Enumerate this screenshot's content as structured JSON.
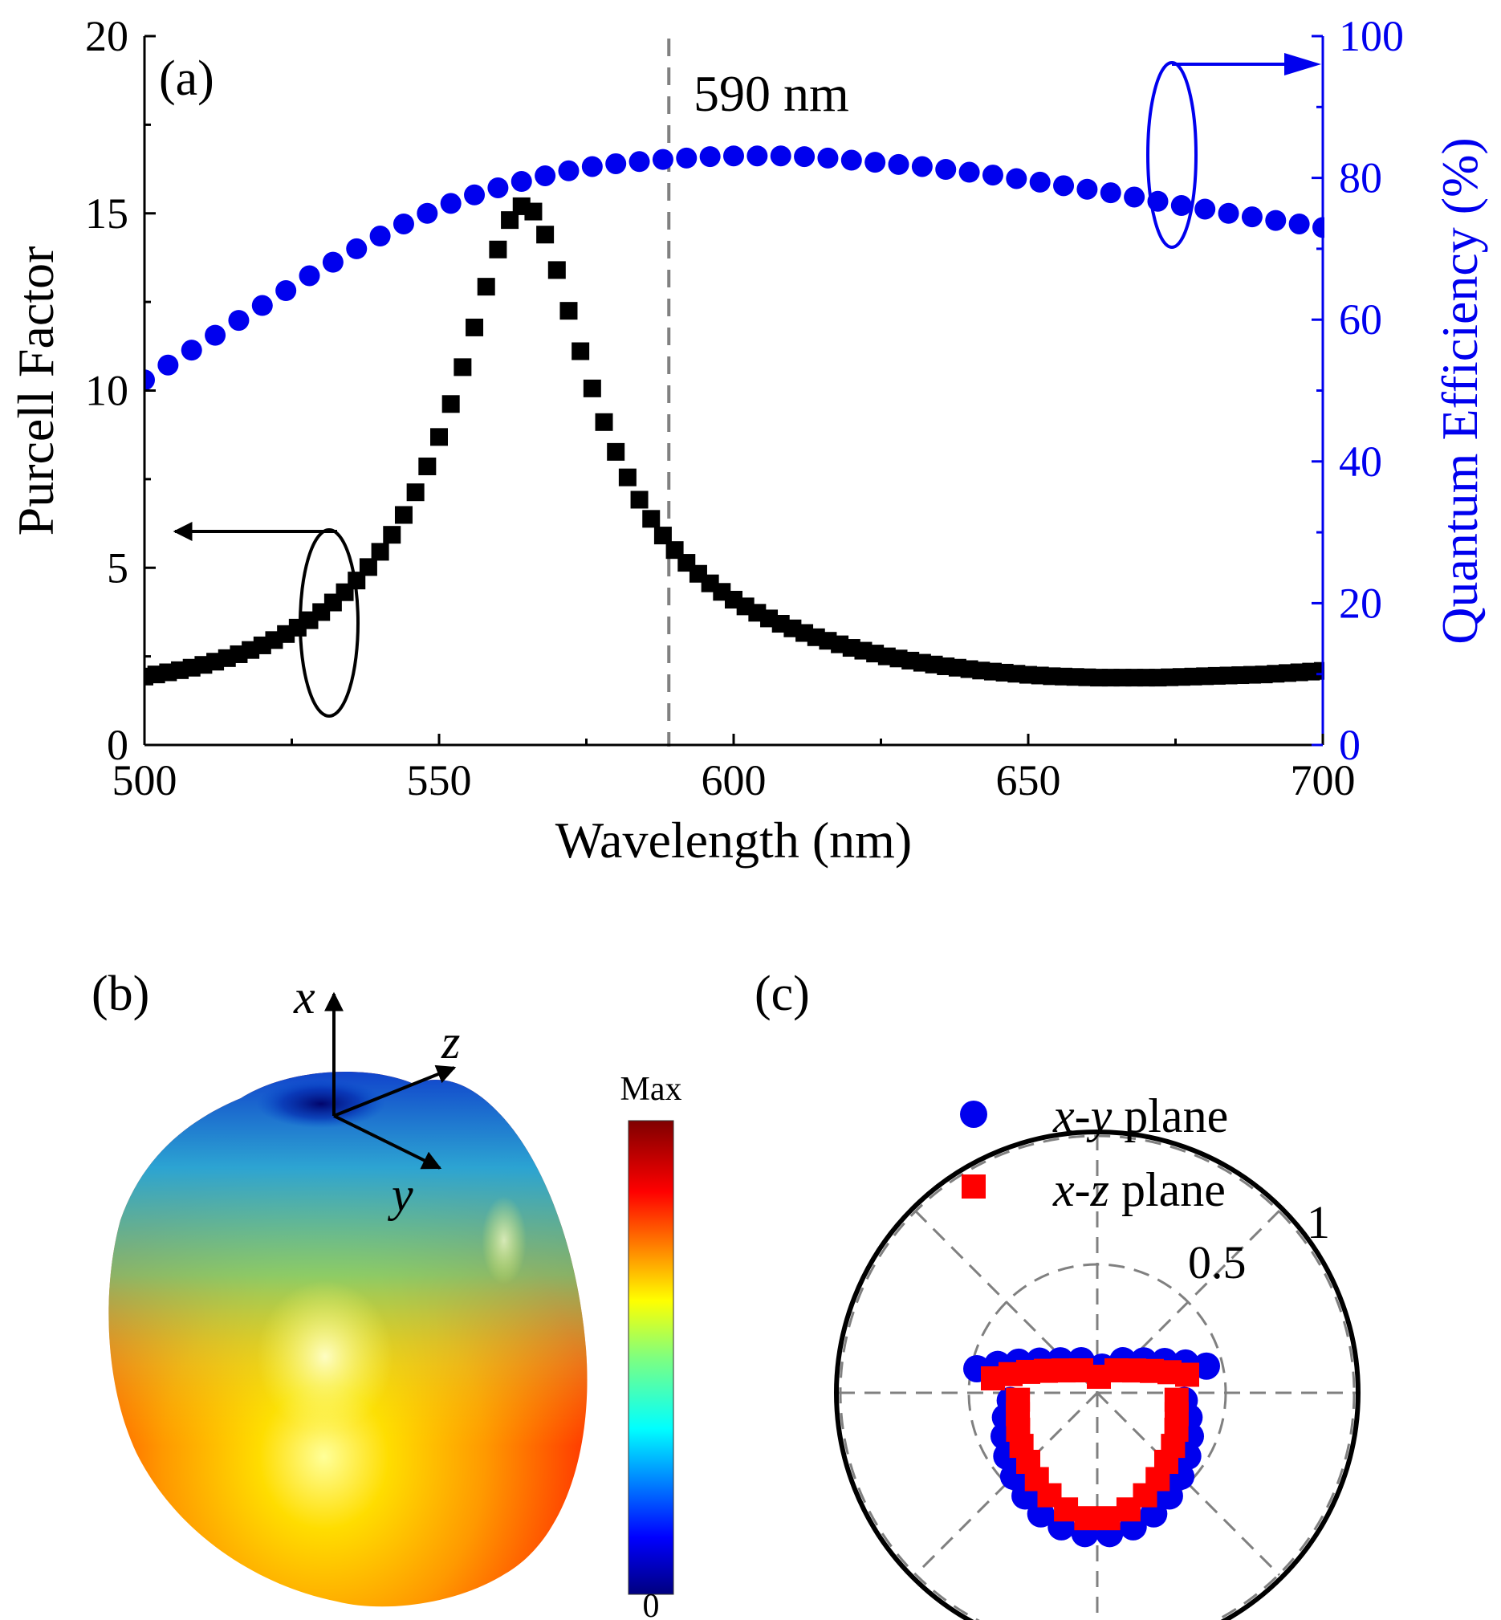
{
  "colors": {
    "purcell": "#000000",
    "qe": "#0000ee",
    "xy": "#0000ee",
    "xz": "#ff0000",
    "guide": "#808080"
  },
  "chart_data": [
    {
      "id": "a",
      "type": "scatter",
      "panel_label": "(a)",
      "xlabel": "Wavelength (nm)",
      "ylabel": "Purcell Factor",
      "y2label": "Quantum Efficiency (%)",
      "xlim": [
        500,
        700
      ],
      "ylim": [
        0,
        20
      ],
      "y2lim": [
        0,
        100
      ],
      "xticks": [
        "500",
        "550",
        "600",
        "650",
        "700"
      ],
      "yticks": [
        "0",
        "5",
        "10",
        "15",
        "20"
      ],
      "y2ticks": [
        "0",
        "20",
        "40",
        "60",
        "80",
        "100"
      ],
      "annotation": {
        "text": "590 nm",
        "x": 589
      },
      "series": [
        {
          "axis": "left",
          "marker": "square",
          "color": "#000000",
          "x_start": 500,
          "x_step": 2,
          "values": [
            1.93,
            1.99,
            2.05,
            2.11,
            2.18,
            2.26,
            2.35,
            2.45,
            2.56,
            2.68,
            2.81,
            2.96,
            3.13,
            3.31,
            3.52,
            3.75,
            4.02,
            4.31,
            4.64,
            5.02,
            5.45,
            5.93,
            6.49,
            7.13,
            7.86,
            8.69,
            9.62,
            10.66,
            11.78,
            12.93,
            13.98,
            14.81,
            15.2,
            15.05,
            14.4,
            13.4,
            12.25,
            11.11,
            10.06,
            9.11,
            8.27,
            7.55,
            6.92,
            6.38,
            5.91,
            5.5,
            5.14,
            4.83,
            4.56,
            4.32,
            4.1,
            3.91,
            3.73,
            3.57,
            3.42,
            3.29,
            3.16,
            3.04,
            2.94,
            2.84,
            2.74,
            2.66,
            2.58,
            2.5,
            2.44,
            2.38,
            2.32,
            2.27,
            2.22,
            2.18,
            2.14,
            2.1,
            2.07,
            2.04,
            2.01,
            1.98,
            1.96,
            1.94,
            1.93,
            1.92,
            1.91,
            1.9,
            1.9,
            1.9,
            1.9,
            1.9,
            1.9,
            1.91,
            1.92,
            1.93,
            1.94,
            1.95,
            1.96,
            1.97,
            1.98,
            1.99,
            2.01,
            2.03,
            2.05,
            2.07,
            2.09
          ]
        },
        {
          "axis": "right",
          "marker": "circle",
          "color": "#0000ee",
          "x_start": 500,
          "x_step": 4,
          "values": [
            51.5,
            53.6,
            55.7,
            57.8,
            59.9,
            62.0,
            64.1,
            66.2,
            68.1,
            70.0,
            71.8,
            73.5,
            75.0,
            76.4,
            77.6,
            78.6,
            79.5,
            80.3,
            81.0,
            81.6,
            82.0,
            82.3,
            82.6,
            82.8,
            83.0,
            83.1,
            83.1,
            83.1,
            83.0,
            82.8,
            82.5,
            82.2,
            81.9,
            81.6,
            81.2,
            80.8,
            80.4,
            79.9,
            79.4,
            78.9,
            78.4,
            77.9,
            77.3,
            76.7,
            76.1,
            75.6,
            75.0,
            74.5,
            74.0,
            73.5,
            73.0
          ]
        }
      ]
    },
    {
      "id": "b",
      "type": "heatmap",
      "panel_label": "(b)",
      "axes": [
        "x",
        "y",
        "z"
      ],
      "colorbar": {
        "max_label": "Max",
        "min_label": "0"
      }
    },
    {
      "id": "c",
      "type": "scatter",
      "panel_label": "(c)",
      "polar": true,
      "r_ticks": [
        "0.5",
        "1"
      ],
      "legend_position": "top-right",
      "series": [
        {
          "name_italic_a": "x",
          "name_italic_b": "y",
          "name_rest": " plane",
          "marker": "circle",
          "color": "#0000ee",
          "theta_deg": [
            -85,
            -75,
            -65,
            -55,
            -45,
            -35,
            -25,
            -15,
            -5,
            5,
            15,
            25,
            35,
            45,
            55,
            65,
            75,
            85
          ],
          "r": [
            0.34,
            0.37,
            0.4,
            0.43,
            0.46,
            0.49,
            0.52,
            0.54,
            0.55,
            0.55,
            0.54,
            0.52,
            0.49,
            0.46,
            0.43,
            0.4,
            0.37,
            0.34
          ]
        },
        {
          "name_italic_a": "x",
          "name_italic_b": "z",
          "name_rest": " plane",
          "marker": "square",
          "color": "#ff0000",
          "theta_deg": [
            -85,
            -75,
            -65,
            -55,
            -45,
            -35,
            -25,
            -15,
            -5,
            5,
            15,
            25,
            35,
            45,
            55,
            65,
            75,
            85
          ],
          "r": [
            0.31,
            0.32,
            0.34,
            0.36,
            0.38,
            0.41,
            0.44,
            0.47,
            0.49,
            0.49,
            0.47,
            0.44,
            0.41,
            0.38,
            0.36,
            0.34,
            0.32,
            0.31
          ]
        }
      ]
    }
  ]
}
